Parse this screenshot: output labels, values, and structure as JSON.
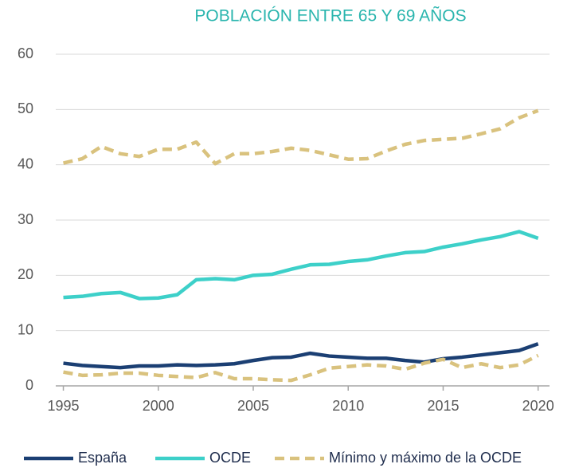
{
  "chart_data": {
    "type": "line",
    "title": "POBLACIÓN ENTRE 65 Y 69 AÑOS",
    "x": [
      1995,
      1996,
      1997,
      1998,
      1999,
      2000,
      2001,
      2002,
      2003,
      2004,
      2005,
      2006,
      2007,
      2008,
      2009,
      2010,
      2011,
      2012,
      2013,
      2014,
      2015,
      2016,
      2017,
      2018,
      2019,
      2020
    ],
    "series": [
      {
        "name": "España",
        "color": "#1b3f73",
        "dashed": false,
        "values": [
          4.1,
          3.7,
          3.5,
          3.3,
          3.6,
          3.6,
          3.8,
          3.7,
          3.8,
          4.0,
          4.6,
          5.1,
          5.2,
          5.9,
          5.4,
          5.2,
          5.0,
          5.0,
          4.6,
          4.3,
          4.9,
          5.2,
          5.6,
          6.0,
          6.4,
          7.6
        ]
      },
      {
        "name": "OCDE",
        "color": "#3dd0c9",
        "dashed": false,
        "values": [
          16.0,
          16.2,
          16.7,
          16.9,
          15.8,
          15.9,
          16.5,
          19.2,
          19.4,
          19.2,
          20.0,
          20.2,
          21.1,
          21.9,
          22.0,
          22.5,
          22.8,
          23.5,
          24.1,
          24.3,
          25.1,
          25.7,
          26.4,
          27.0,
          27.9,
          26.7
        ]
      },
      {
        "name": "Mínimo y máximo de la OCDE",
        "color": "#d9c27e",
        "dashed": true,
        "values": [
          40.3,
          41.1,
          43.3,
          42.0,
          41.5,
          42.8,
          42.8,
          44.1,
          40.2,
          42.0,
          42.0,
          42.4,
          43.0,
          42.6,
          41.8,
          41.0,
          41.1,
          42.5,
          43.7,
          44.4,
          44.6,
          44.8,
          45.6,
          46.5,
          48.5,
          49.8
        ],
        "low": [
          2.5,
          1.9,
          2.0,
          2.3,
          2.3,
          1.9,
          1.7,
          1.5,
          2.4,
          1.3,
          1.3,
          1.1,
          1.0,
          2.0,
          3.2,
          3.5,
          3.8,
          3.6,
          3.0,
          4.1,
          4.8,
          3.3,
          4.0,
          3.3,
          3.8,
          5.5
        ]
      }
    ],
    "xlim": [
      1994.6,
      2020.6
    ],
    "xticks": [
      1995,
      2000,
      2005,
      2010,
      2015,
      2020
    ],
    "ylim": [
      0,
      60
    ],
    "yticks": [
      0,
      10,
      20,
      30,
      40,
      50,
      60
    ],
    "grid": true,
    "legend": "bottom"
  }
}
